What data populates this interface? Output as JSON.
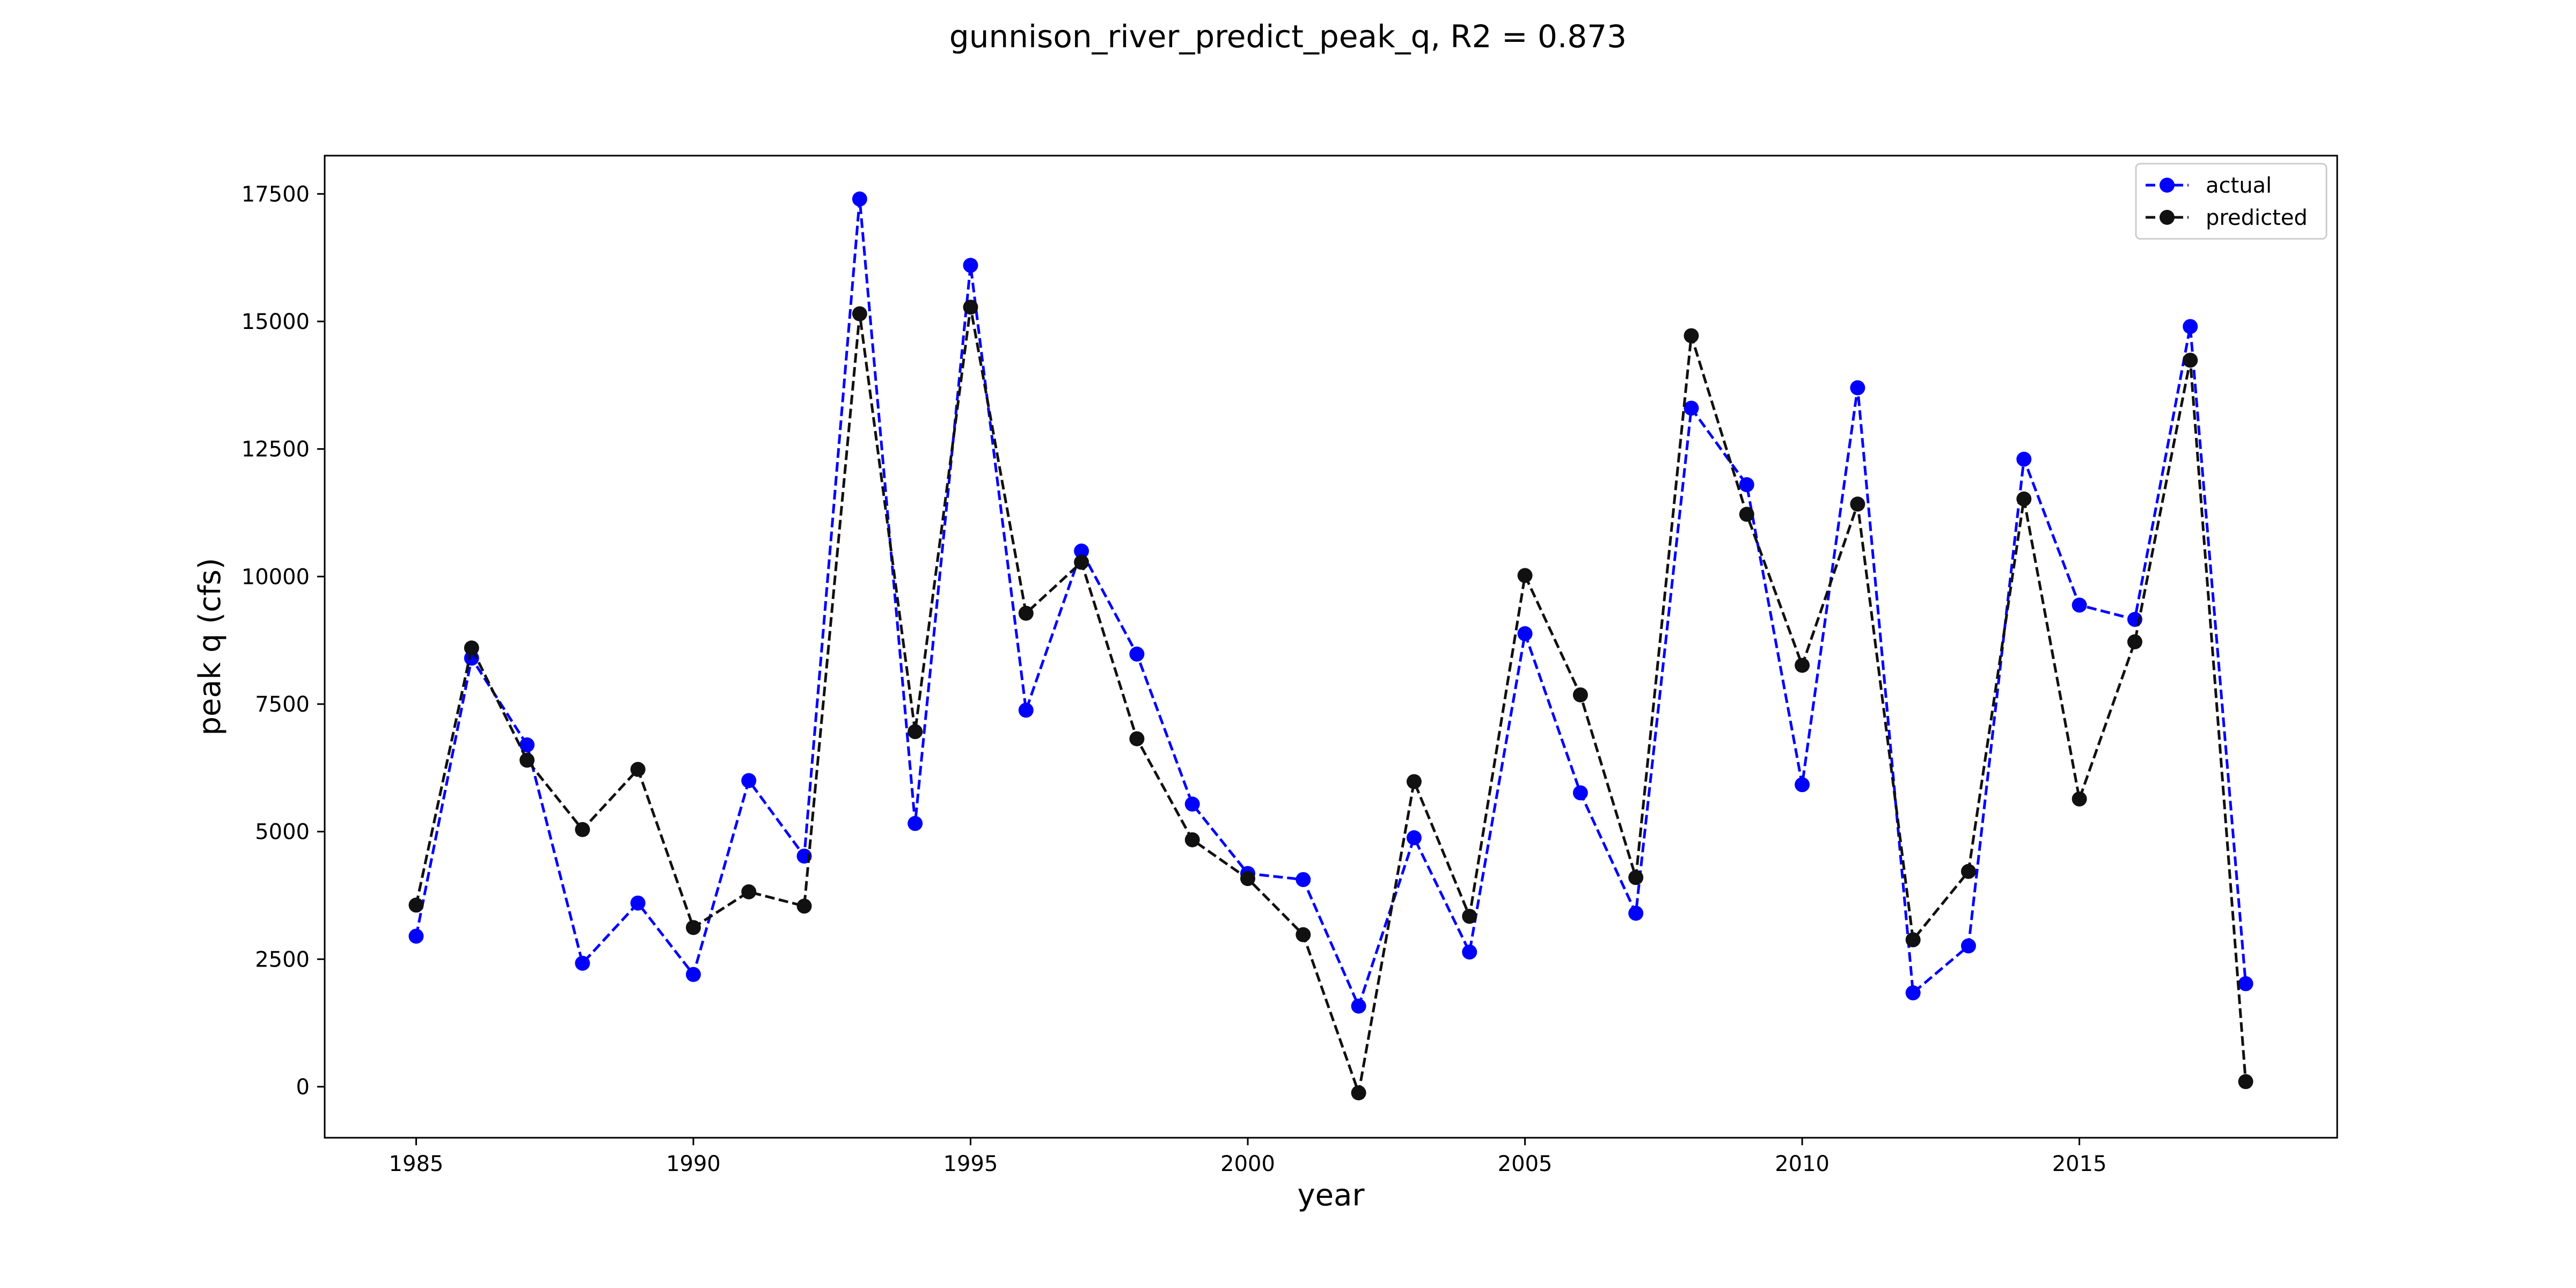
{
  "chart_data": {
    "type": "line",
    "title": "gunnison_river_predict_peak_q, R2 = 0.873",
    "xlabel": "year",
    "ylabel": "peak q (cfs)",
    "xlim": [
      1983.35,
      2019.65
    ],
    "ylim": [
      -1000,
      18250
    ],
    "xticks": [
      1985,
      1990,
      1995,
      2000,
      2005,
      2010,
      2015
    ],
    "yticks": [
      0,
      2500,
      5000,
      7500,
      10000,
      12500,
      15000,
      17500
    ],
    "grid": false,
    "legend_position": "top-right",
    "x": [
      1985,
      1986,
      1987,
      1988,
      1989,
      1990,
      1991,
      1992,
      1993,
      1994,
      1995,
      1996,
      1997,
      1998,
      1999,
      2000,
      2001,
      2002,
      2003,
      2004,
      2005,
      2006,
      2007,
      2008,
      2009,
      2010,
      2011,
      2012,
      2013,
      2014,
      2015,
      2016,
      2017,
      2018
    ],
    "series": [
      {
        "name": "actual",
        "color": "#0000ff",
        "values": [
          2950,
          8400,
          6700,
          2420,
          3600,
          2200,
          6000,
          4520,
          17400,
          5160,
          16100,
          7380,
          10500,
          8480,
          5540,
          4180,
          4060,
          1580,
          4880,
          2640,
          8880,
          5760,
          3400,
          13300,
          11800,
          5920,
          13700,
          1840,
          2760,
          12300,
          9440,
          9160,
          14900,
          2020
        ]
      },
      {
        "name": "predicted",
        "color": "#111111",
        "values": [
          3560,
          8600,
          6400,
          5040,
          6220,
          3120,
          3820,
          3540,
          15150,
          6960,
          15280,
          9280,
          10280,
          6820,
          4840,
          4080,
          2980,
          -120,
          5980,
          3340,
          10020,
          7680,
          4100,
          14720,
          11220,
          8260,
          11420,
          2880,
          4220,
          11520,
          5640,
          8720,
          14240,
          100
        ]
      }
    ]
  }
}
